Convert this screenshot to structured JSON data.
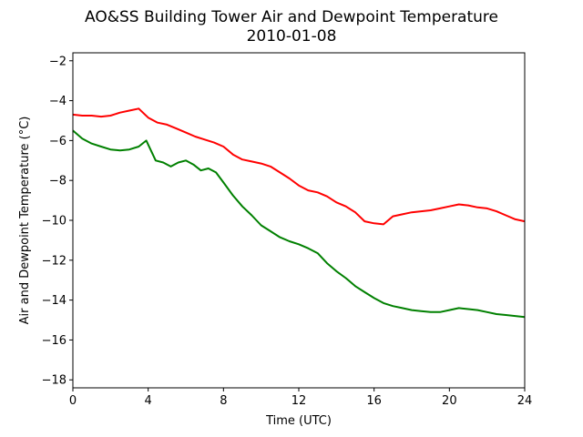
{
  "chart_data": {
    "type": "line",
    "title": [
      "AO&SS Building Tower Air and Dewpoint Temperature",
      "2010-01-08"
    ],
    "xlabel": "Time (UTC)",
    "ylabel": "Air and Dewpoint Temperature (°C)",
    "xlim": [
      0,
      24
    ],
    "ylim": [
      -18.4,
      -1.6
    ],
    "xticks": [
      0,
      4,
      8,
      12,
      16,
      20,
      24
    ],
    "yticks": [
      -18,
      -16,
      -14,
      -12,
      -10,
      -8,
      -6,
      -4,
      -2
    ],
    "xtick_labels": [
      "0",
      "4",
      "8",
      "12",
      "16",
      "20",
      "24"
    ],
    "ytick_labels": [
      "−18",
      "−16",
      "−14",
      "−12",
      "−10",
      "−8",
      "−6",
      "−4",
      "−2"
    ],
    "grid": false,
    "series": [
      {
        "color": "#ff0000",
        "x": [
          0,
          0.5,
          1,
          1.5,
          2,
          2.5,
          3,
          3.5,
          4,
          4.5,
          5,
          5.5,
          6,
          6.5,
          7,
          7.5,
          8,
          8.5,
          9,
          9.5,
          10,
          10.5,
          11,
          11.5,
          12,
          12.5,
          13,
          13.5,
          14,
          14.5,
          15,
          15.5,
          16,
          16.5,
          17,
          17.5,
          18,
          18.5,
          19,
          19.5,
          20,
          20.5,
          21,
          21.5,
          22,
          22.5,
          23,
          23.5,
          24
        ],
        "values": [
          -4.7,
          -4.75,
          -4.75,
          -4.8,
          -4.75,
          -4.6,
          -4.5,
          -4.4,
          -4.85,
          -5.1,
          -5.2,
          -5.4,
          -5.6,
          -5.8,
          -5.95,
          -6.1,
          -6.3,
          -6.7,
          -6.95,
          -7.05,
          -7.15,
          -7.3,
          -7.6,
          -7.9,
          -8.25,
          -8.5,
          -8.6,
          -8.8,
          -9.1,
          -9.3,
          -9.6,
          -10.05,
          -10.15,
          -10.2,
          -9.8,
          -9.7,
          -9.6,
          -9.55,
          -9.5,
          -9.4,
          -9.3,
          -9.2,
          -9.25,
          -9.35,
          -9.4,
          -9.55,
          -9.75,
          -9.95,
          -10.05
        ]
      },
      {
        "color": "#008000",
        "x": [
          0,
          0.5,
          1,
          1.5,
          2,
          2.5,
          3,
          3.5,
          3.9,
          4.4,
          4.8,
          5.2,
          5.6,
          6,
          6.4,
          6.8,
          7.2,
          7.6,
          8,
          8.5,
          9,
          9.5,
          10,
          10.5,
          11,
          11.5,
          12,
          12.5,
          13,
          13.5,
          14,
          14.5,
          15,
          15.5,
          16,
          16.5,
          17,
          17.5,
          18,
          18.5,
          19,
          19.5,
          20,
          20.5,
          21,
          21.5,
          22,
          22.5,
          23,
          23.5,
          24
        ],
        "values": [
          -5.5,
          -5.9,
          -6.15,
          -6.3,
          -6.45,
          -6.5,
          -6.45,
          -6.3,
          -6.0,
          -7.0,
          -7.1,
          -7.3,
          -7.1,
          -7.0,
          -7.2,
          -7.5,
          -7.4,
          -7.6,
          -8.1,
          -8.75,
          -9.3,
          -9.75,
          -10.25,
          -10.55,
          -10.85,
          -11.05,
          -11.2,
          -11.4,
          -11.65,
          -12.15,
          -12.55,
          -12.9,
          -13.3,
          -13.6,
          -13.9,
          -14.15,
          -14.3,
          -14.4,
          -14.5,
          -14.55,
          -14.6,
          -14.6,
          -14.5,
          -14.4,
          -14.45,
          -14.5,
          -14.6,
          -14.7,
          -14.75,
          -14.8,
          -14.85
        ]
      }
    ]
  }
}
